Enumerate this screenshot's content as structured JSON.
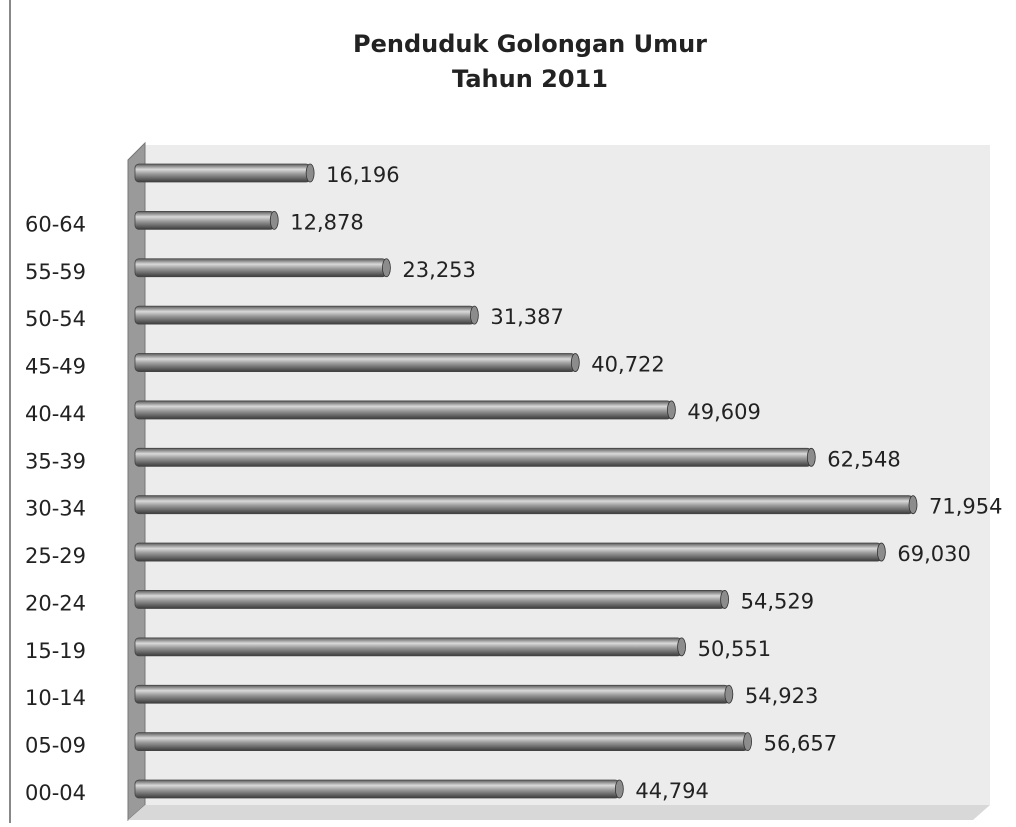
{
  "chart_data": {
    "type": "bar",
    "orientation": "horizontal",
    "title": [
      "Penduduk Golongan Umur",
      "Tahun 2011"
    ],
    "categories": [
      "00-04",
      "05-09",
      "10-14",
      "15-19",
      "20-24",
      "25-29",
      "30-34",
      "35-39",
      "40-44",
      "45-49",
      "50-54",
      "55-59",
      "60-64",
      null
    ],
    "values": [
      44794,
      56657,
      54923,
      50551,
      54529,
      69030,
      71954,
      62548,
      49609,
      40722,
      31387,
      23253,
      12878,
      16196
    ],
    "value_labels": [
      "44,794",
      "56,657",
      "54,923",
      "50,551",
      "54,529",
      "69,030",
      "71,954",
      "62,548",
      "49,609",
      "40,722",
      "31,387",
      "23,253",
      "12,878",
      "16,196"
    ],
    "color": "#8c8c8c",
    "xlim": [
      0,
      80000
    ]
  }
}
